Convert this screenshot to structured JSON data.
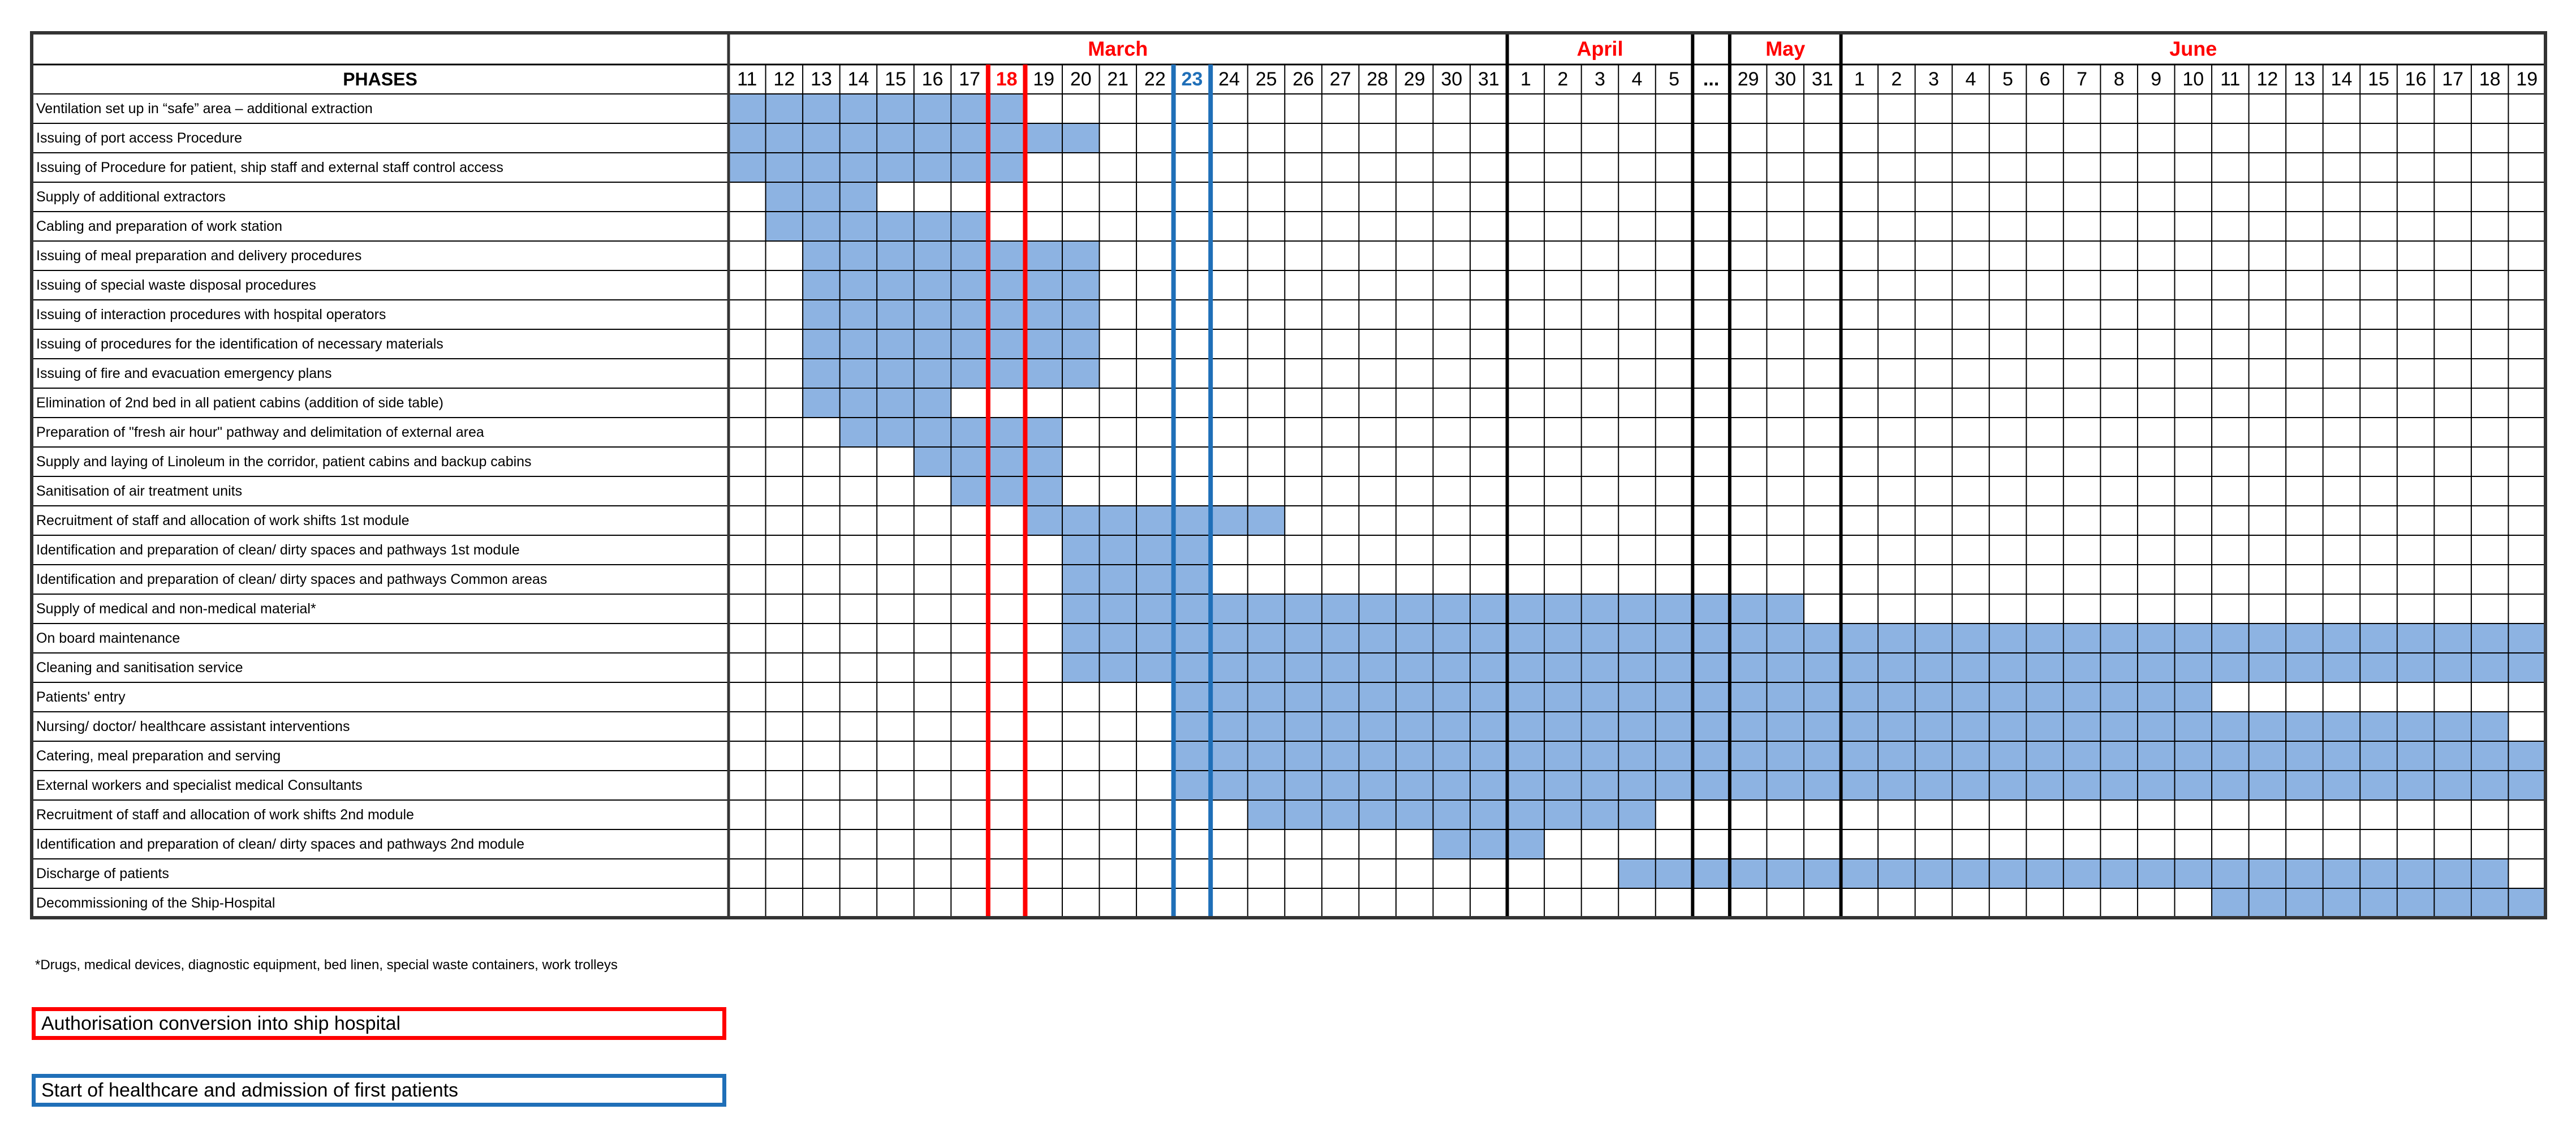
{
  "chart_data": {
    "type": "gantt",
    "title": "",
    "phases_header": "PHASES",
    "months": [
      {
        "name": "March",
        "color": "#ff0000"
      },
      {
        "name": "April",
        "color": "#ff0000"
      },
      {
        "name": "May",
        "color": "#ff0000"
      },
      {
        "name": "June",
        "color": "#ff0000"
      }
    ],
    "days": [
      {
        "label": "11",
        "month": "March"
      },
      {
        "label": "12",
        "month": "March"
      },
      {
        "label": "13",
        "month": "March"
      },
      {
        "label": "14",
        "month": "March"
      },
      {
        "label": "15",
        "month": "March"
      },
      {
        "label": "16",
        "month": "March"
      },
      {
        "label": "17",
        "month": "March"
      },
      {
        "label": "18",
        "month": "March",
        "highlight": "red"
      },
      {
        "label": "19",
        "month": "March"
      },
      {
        "label": "20",
        "month": "March"
      },
      {
        "label": "21",
        "month": "March"
      },
      {
        "label": "22",
        "month": "March"
      },
      {
        "label": "23",
        "month": "March",
        "highlight": "blue"
      },
      {
        "label": "24",
        "month": "March"
      },
      {
        "label": "25",
        "month": "March"
      },
      {
        "label": "26",
        "month": "March"
      },
      {
        "label": "27",
        "month": "March"
      },
      {
        "label": "28",
        "month": "March"
      },
      {
        "label": "29",
        "month": "March"
      },
      {
        "label": "30",
        "month": "March"
      },
      {
        "label": "31",
        "month": "March"
      },
      {
        "label": "1",
        "month": "April"
      },
      {
        "label": "2",
        "month": "April"
      },
      {
        "label": "3",
        "month": "April"
      },
      {
        "label": "4",
        "month": "April"
      },
      {
        "label": "5",
        "month": "April"
      },
      {
        "label": "...",
        "month": "gap"
      },
      {
        "label": "29",
        "month": "May"
      },
      {
        "label": "30",
        "month": "May"
      },
      {
        "label": "31",
        "month": "May"
      },
      {
        "label": "1",
        "month": "June"
      },
      {
        "label": "2",
        "month": "June"
      },
      {
        "label": "3",
        "month": "June"
      },
      {
        "label": "4",
        "month": "June"
      },
      {
        "label": "5",
        "month": "June"
      },
      {
        "label": "6",
        "month": "June"
      },
      {
        "label": "7",
        "month": "June"
      },
      {
        "label": "8",
        "month": "June"
      },
      {
        "label": "9",
        "month": "June"
      },
      {
        "label": "10",
        "month": "June"
      },
      {
        "label": "11",
        "month": "June"
      },
      {
        "label": "12",
        "month": "June"
      },
      {
        "label": "13",
        "month": "June"
      },
      {
        "label": "14",
        "month": "June"
      },
      {
        "label": "15",
        "month": "June"
      },
      {
        "label": "16",
        "month": "June"
      },
      {
        "label": "17",
        "month": "June"
      },
      {
        "label": "18",
        "month": "June"
      },
      {
        "label": "19",
        "month": "June"
      }
    ],
    "tasks": [
      {
        "label": "Ventilation set up in “safe” area – additional extraction",
        "start": "March 11",
        "end": "March 18"
      },
      {
        "label": "Issuing of port access Procedure",
        "start": "March 11",
        "end": "March 20"
      },
      {
        "label": "Issuing of Procedure for patient, ship staff and external staff control access",
        "start": "March 11",
        "end": "March 18"
      },
      {
        "label": "Supply of additional extractors",
        "start": "March 12",
        "end": "March 14"
      },
      {
        "label": "Cabling and preparation of work station",
        "start": "March 12",
        "end": "March 17"
      },
      {
        "label": "Issuing of meal preparation and delivery procedures",
        "start": "March 13",
        "end": "March 20"
      },
      {
        "label": "Issuing of special waste disposal procedures",
        "start": "March 13",
        "end": "March 20"
      },
      {
        "label": "Issuing of interaction procedures with hospital operators",
        "start": "March 13",
        "end": "March 20"
      },
      {
        "label": "Issuing of procedures for the identification of necessary materials",
        "start": "March 13",
        "end": "March 20"
      },
      {
        "label": "Issuing of fire and evacuation emergency plans",
        "start": "March 13",
        "end": "March 20"
      },
      {
        "label": "Elimination of 2nd bed in all patient cabins (addition of side table)",
        "start": "March 13",
        "end": "March 16"
      },
      {
        "label": "Preparation of \"fresh air hour\" pathway and delimitation of external area",
        "start": "March 14",
        "end": "March 19"
      },
      {
        "label": "Supply and laying of Linoleum in the corridor, patient cabins and backup cabins",
        "start": "March 16",
        "end": "March 19"
      },
      {
        "label": "Sanitisation of air treatment units",
        "start": "March 17",
        "end": "March 19"
      },
      {
        "label": "Recruitment of staff and allocation of work shifts 1st module",
        "start": "March 19",
        "end": "March 25"
      },
      {
        "label": "Identification and preparation of clean/ dirty spaces and pathways 1st module",
        "start": "March 20",
        "end": "March 23"
      },
      {
        "label": "Identification and preparation of clean/ dirty spaces and pathways Common areas",
        "start": "March 20",
        "end": "March 23"
      },
      {
        "label": "Supply of medical and non-medical material*",
        "start": "March 20",
        "end": "May 30"
      },
      {
        "label": "On board maintenance",
        "start": "March 20",
        "end": "June 19"
      },
      {
        "label": "Cleaning and sanitisation service",
        "start": "March 20",
        "end": "June 19"
      },
      {
        "label": "Patients' entry",
        "start": "March 23",
        "end": "June 10"
      },
      {
        "label": "Nursing/ doctor/ healthcare assistant interventions",
        "start": "March 23",
        "end": "June 18"
      },
      {
        "label": "Catering, meal preparation and serving",
        "start": "March 23",
        "end": "June 19"
      },
      {
        "label": "External workers and specialist medical Consultants",
        "start": "March 23",
        "end": "June 19"
      },
      {
        "label": "Recruitment of staff and allocation of work shifts 2nd module",
        "start": "March 25",
        "end": "April 4"
      },
      {
        "label": "Identification and preparation of clean/ dirty spaces and pathways 2nd module",
        "start": "March 30",
        "end": "April 1"
      },
      {
        "label": "Discharge of patients",
        "start": "April 4",
        "end": "June 18"
      },
      {
        "label": "Decommissioning of the Ship-Hospital",
        "start": "June 11",
        "end": "June 19"
      }
    ],
    "markers": [
      {
        "day": "March 18",
        "color": "#ff0000",
        "legend": "Authorisation conversion into ship hospital"
      },
      {
        "day": "March 23",
        "color": "#1f6fb8",
        "legend": "Start of healthcare and admission of first patients"
      }
    ],
    "bar_color": "#8db3e2",
    "grid": true
  },
  "footnote": "*Drugs, medical devices, diagnostic equipment, bed linen, special waste containers, work trolleys",
  "legend": {
    "red_label": "Authorisation conversion into ship hospital",
    "blue_label": "Start of healthcare and admission of first patients",
    "red_color": "#ff0000",
    "blue_color": "#1f6fb8"
  }
}
